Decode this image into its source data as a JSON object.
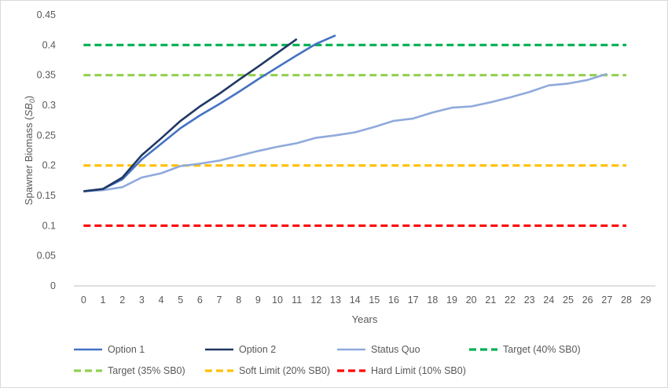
{
  "chart_data": {
    "type": "line",
    "title": "",
    "xlabel": "Years",
    "ylabel_prefix": "Spawner Biomass (",
    "ylabel_symbol": "SB",
    "ylabel_subscript": "0",
    "ylabel_suffix": ")",
    "xlim": [
      0,
      29
    ],
    "ylim": [
      0,
      0.45
    ],
    "x_ticks": [
      0,
      1,
      2,
      3,
      4,
      5,
      6,
      7,
      8,
      9,
      10,
      11,
      12,
      13,
      14,
      15,
      16,
      17,
      18,
      19,
      20,
      21,
      22,
      23,
      24,
      25,
      26,
      27,
      28,
      29
    ],
    "y_ticks": [
      "0",
      "0.05",
      "0.1",
      "0.15",
      "0.2",
      "0.25",
      "0.3",
      "0.35",
      "0.4",
      "0.45"
    ],
    "grid": false,
    "legend_position": "bottom",
    "series": [
      {
        "name": "Option 1",
        "color": "#4472c4",
        "style": "solid",
        "x": [
          0,
          1,
          2,
          3,
          4,
          5,
          6,
          7,
          8,
          9,
          10,
          11,
          12,
          13
        ],
        "values": [
          0.157,
          0.161,
          0.177,
          0.21,
          0.236,
          0.262,
          0.283,
          0.302,
          0.322,
          0.343,
          0.363,
          0.383,
          0.402,
          0.416
        ]
      },
      {
        "name": "Option 2",
        "color": "#203864",
        "style": "solid",
        "x": [
          0,
          1,
          2,
          3,
          4,
          5,
          6,
          7,
          8,
          9,
          10,
          11
        ],
        "values": [
          0.157,
          0.161,
          0.18,
          0.217,
          0.245,
          0.274,
          0.298,
          0.319,
          0.342,
          0.364,
          0.387,
          0.41
        ]
      },
      {
        "name": "Status Quo",
        "color": "#8faadc",
        "style": "solid",
        "x": [
          0,
          1,
          2,
          3,
          4,
          5,
          6,
          7,
          8,
          9,
          10,
          11,
          12,
          13,
          14,
          15,
          16,
          17,
          18,
          19,
          20,
          21,
          22,
          23,
          24,
          25,
          26,
          27
        ],
        "values": [
          0.157,
          0.159,
          0.164,
          0.18,
          0.187,
          0.199,
          0.203,
          0.208,
          0.216,
          0.224,
          0.231,
          0.237,
          0.246,
          0.25,
          0.255,
          0.264,
          0.274,
          0.278,
          0.288,
          0.296,
          0.298,
          0.305,
          0.313,
          0.322,
          0.333,
          0.336,
          0.342,
          0.352
        ]
      },
      {
        "name": "Target (40% SB0)",
        "color": "#00b050",
        "style": "dashed",
        "x": [
          0,
          28
        ],
        "values": [
          0.4,
          0.4
        ]
      },
      {
        "name": "Target (35% SB0)",
        "color": "#92d050",
        "style": "dashed",
        "x": [
          0,
          28
        ],
        "values": [
          0.35,
          0.35
        ]
      },
      {
        "name": "Soft Limit (20% SB0)",
        "color": "#ffc000",
        "style": "dashed",
        "x": [
          0,
          28
        ],
        "values": [
          0.2,
          0.2
        ]
      },
      {
        "name": "Hard Limit (10% SB0)",
        "color": "#ff0000",
        "style": "dashed",
        "x": [
          0,
          28
        ],
        "values": [
          0.1,
          0.1
        ]
      }
    ]
  }
}
